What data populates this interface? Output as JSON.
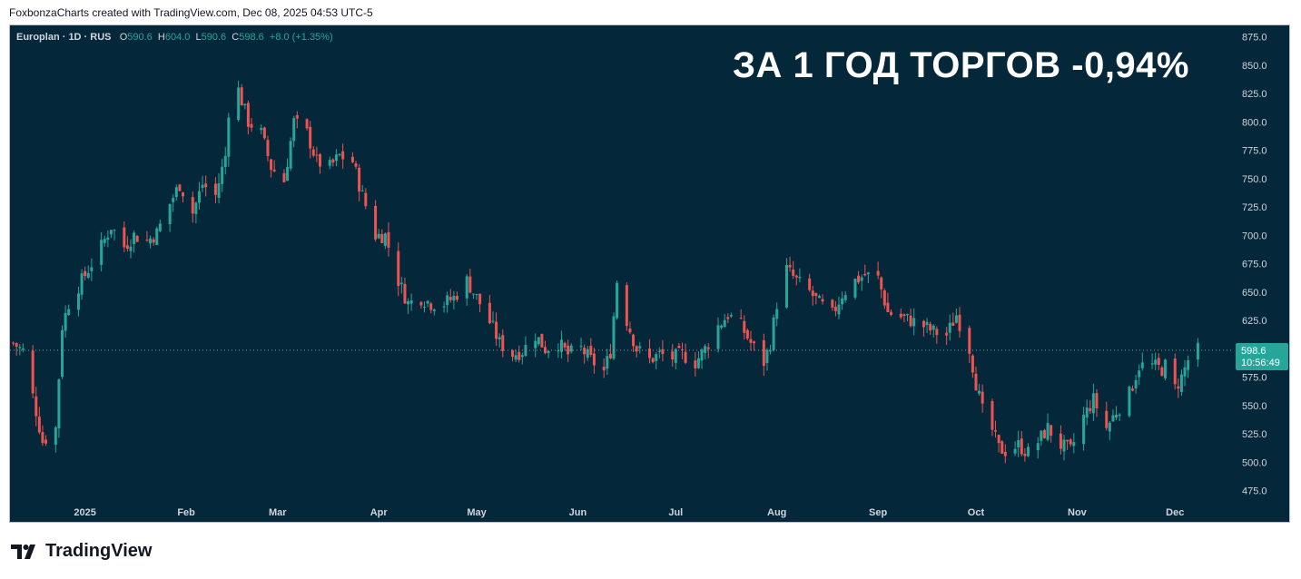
{
  "header": {
    "caption": "FoxbonzaCharts created with TradingView.com, Dec 08, 2025 04:53 UTC-5"
  },
  "legend": {
    "symbol": "Europlan · 1D · RUS",
    "o_label": "O",
    "o_value": "590.6",
    "h_label": "H",
    "h_value": "604.0",
    "l_label": "L",
    "l_value": "590.6",
    "c_label": "C",
    "c_value": "598.6",
    "change": "+8.0 (+1.35%)"
  },
  "headline": "ЗА 1 ГОД ТОРГОВ -0,94%",
  "footer": {
    "brand": "TradingView"
  },
  "colors": {
    "background": "#05273a",
    "up": "#26a69a",
    "down": "#ef5350",
    "axis_text": "#d1d4dc",
    "price_tag": "#26a69a"
  },
  "chart_data": {
    "type": "candlestick",
    "symbol": "Europlan",
    "interval": "1D",
    "ylim": [
      465,
      880
    ],
    "y_ticks": [
      "875.0",
      "850.0",
      "825.0",
      "800.0",
      "775.0",
      "750.0",
      "725.0",
      "700.0",
      "675.0",
      "650.0",
      "625.0",
      "600.0",
      "575.0",
      "550.0",
      "525.0",
      "500.0",
      "475.0"
    ],
    "x_ticks": [
      "2025",
      "Feb",
      "Mar",
      "Apr",
      "May",
      "Jun",
      "Jul",
      "Aug",
      "Sep",
      "Oct",
      "Nov",
      "Dec"
    ],
    "last_price": "598.6",
    "countdown": "10:56:49",
    "series": [
      {
        "name": "Europlan",
        "points": [
          {
            "date": "2024-12-10",
            "close": 605
          },
          {
            "date": "2024-12-13",
            "close": 598
          },
          {
            "date": "2024-12-17",
            "close": 545
          },
          {
            "date": "2024-12-19",
            "close": 518
          },
          {
            "date": "2024-12-23",
            "close": 530
          },
          {
            "date": "2024-12-25",
            "close": 620
          },
          {
            "date": "2024-12-27",
            "close": 640
          },
          {
            "date": "2024-12-30",
            "close": 655
          },
          {
            "date": "2025-01-06",
            "close": 690
          },
          {
            "date": "2025-01-09",
            "close": 708
          },
          {
            "date": "2025-01-13",
            "close": 690
          },
          {
            "date": "2025-01-16",
            "close": 700
          },
          {
            "date": "2025-01-20",
            "close": 695
          },
          {
            "date": "2025-01-23",
            "close": 702
          },
          {
            "date": "2025-01-27",
            "close": 728
          },
          {
            "date": "2025-01-30",
            "close": 745
          },
          {
            "date": "2025-02-03",
            "close": 720
          },
          {
            "date": "2025-02-06",
            "close": 745
          },
          {
            "date": "2025-02-10",
            "close": 735
          },
          {
            "date": "2025-02-13",
            "close": 770
          },
          {
            "date": "2025-02-14",
            "close": 810
          },
          {
            "date": "2025-02-17",
            "close": 828
          },
          {
            "date": "2025-02-20",
            "close": 800
          },
          {
            "date": "2025-02-24",
            "close": 790
          },
          {
            "date": "2025-02-27",
            "close": 760
          },
          {
            "date": "2025-03-03",
            "close": 748
          },
          {
            "date": "2025-03-06",
            "close": 800
          },
          {
            "date": "2025-03-10",
            "close": 790
          },
          {
            "date": "2025-03-13",
            "close": 765
          },
          {
            "date": "2025-03-17",
            "close": 760
          },
          {
            "date": "2025-03-20",
            "close": 770
          },
          {
            "date": "2025-03-24",
            "close": 765
          },
          {
            "date": "2025-03-27",
            "close": 735
          },
          {
            "date": "2025-03-31",
            "close": 700
          },
          {
            "date": "2025-04-03",
            "close": 700
          },
          {
            "date": "2025-04-07",
            "close": 660
          },
          {
            "date": "2025-04-10",
            "close": 640
          },
          {
            "date": "2025-04-14",
            "close": 645
          },
          {
            "date": "2025-04-17",
            "close": 640
          },
          {
            "date": "2025-04-21",
            "close": 640
          },
          {
            "date": "2025-04-24",
            "close": 645
          },
          {
            "date": "2025-04-28",
            "close": 660
          },
          {
            "date": "2025-05-02",
            "close": 640
          },
          {
            "date": "2025-05-06",
            "close": 618
          },
          {
            "date": "2025-05-08",
            "close": 605
          },
          {
            "date": "2025-05-12",
            "close": 595
          },
          {
            "date": "2025-05-15",
            "close": 598
          },
          {
            "date": "2025-05-19",
            "close": 612
          },
          {
            "date": "2025-05-22",
            "close": 600
          },
          {
            "date": "2025-05-26",
            "close": 605
          },
          {
            "date": "2025-05-29",
            "close": 595
          },
          {
            "date": "2025-06-02",
            "close": 600
          },
          {
            "date": "2025-06-05",
            "close": 590
          },
          {
            "date": "2025-06-09",
            "close": 580
          },
          {
            "date": "2025-06-11",
            "close": 598
          },
          {
            "date": "2025-06-13",
            "close": 660
          },
          {
            "date": "2025-06-16",
            "close": 625
          },
          {
            "date": "2025-06-19",
            "close": 600
          },
          {
            "date": "2025-06-23",
            "close": 590
          },
          {
            "date": "2025-06-26",
            "close": 595
          },
          {
            "date": "2025-06-30",
            "close": 592
          },
          {
            "date": "2025-07-03",
            "close": 595
          },
          {
            "date": "2025-07-07",
            "close": 588
          },
          {
            "date": "2025-07-10",
            "close": 600
          },
          {
            "date": "2025-07-14",
            "close": 620
          },
          {
            "date": "2025-07-17",
            "close": 630
          },
          {
            "date": "2025-07-21",
            "close": 620
          },
          {
            "date": "2025-07-24",
            "close": 605
          },
          {
            "date": "2025-07-28",
            "close": 588
          },
          {
            "date": "2025-07-30",
            "close": 605
          },
          {
            "date": "2025-08-01",
            "close": 640
          },
          {
            "date": "2025-08-04",
            "close": 670
          },
          {
            "date": "2025-08-07",
            "close": 660
          },
          {
            "date": "2025-08-11",
            "close": 650
          },
          {
            "date": "2025-08-14",
            "close": 640
          },
          {
            "date": "2025-08-18",
            "close": 630
          },
          {
            "date": "2025-08-21",
            "close": 648
          },
          {
            "date": "2025-08-25",
            "close": 660
          },
          {
            "date": "2025-08-28",
            "close": 665
          },
          {
            "date": "2025-09-01",
            "close": 662
          },
          {
            "date": "2025-09-04",
            "close": 632
          },
          {
            "date": "2025-09-08",
            "close": 628
          },
          {
            "date": "2025-09-11",
            "close": 625
          },
          {
            "date": "2025-09-15",
            "close": 620
          },
          {
            "date": "2025-09-18",
            "close": 615
          },
          {
            "date": "2025-09-22",
            "close": 612
          },
          {
            "date": "2025-09-25",
            "close": 630
          },
          {
            "date": "2025-09-29",
            "close": 600
          },
          {
            "date": "2025-10-01",
            "close": 570
          },
          {
            "date": "2025-10-03",
            "close": 545
          },
          {
            "date": "2025-10-06",
            "close": 528
          },
          {
            "date": "2025-10-08",
            "close": 512
          },
          {
            "date": "2025-10-10",
            "close": 510
          },
          {
            "date": "2025-10-14",
            "close": 515
          },
          {
            "date": "2025-10-17",
            "close": 508
          },
          {
            "date": "2025-10-20",
            "close": 518
          },
          {
            "date": "2025-10-23",
            "close": 530
          },
          {
            "date": "2025-10-27",
            "close": 515
          },
          {
            "date": "2025-10-30",
            "close": 510
          },
          {
            "date": "2025-11-03",
            "close": 540
          },
          {
            "date": "2025-11-06",
            "close": 555
          },
          {
            "date": "2025-11-10",
            "close": 530
          },
          {
            "date": "2025-11-13",
            "close": 545
          },
          {
            "date": "2025-11-17",
            "close": 560
          },
          {
            "date": "2025-11-20",
            "close": 585
          },
          {
            "date": "2025-11-24",
            "close": 585
          },
          {
            "date": "2025-11-27",
            "close": 582
          },
          {
            "date": "2025-11-28",
            "close": 585
          },
          {
            "date": "2025-12-01",
            "close": 565
          },
          {
            "date": "2025-12-03",
            "close": 575
          },
          {
            "date": "2025-12-05",
            "close": 590
          },
          {
            "date": "2025-12-08",
            "close": 598.6
          }
        ]
      }
    ]
  }
}
